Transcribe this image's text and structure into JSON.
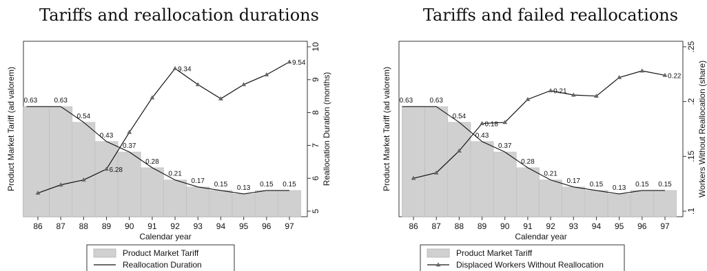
{
  "chart_data": [
    {
      "type": "bar",
      "title": "Tariffs and reallocation durations",
      "xlabel": "Calendar year",
      "ylabel_left": "Product Market Tariff (ad valorem)",
      "ylabel_right": "Reallocation Duration (months)",
      "categories": [
        "86",
        "87",
        "88",
        "89",
        "90",
        "91",
        "92",
        "93",
        "94",
        "95",
        "96",
        "97"
      ],
      "y2_ticks": [
        "5",
        "6",
        "7",
        "8",
        "9",
        "10"
      ],
      "y2lim": [
        5,
        10
      ],
      "series": [
        {
          "name": "Product Market Tariff",
          "kind": "bar",
          "axis": "left",
          "values": [
            0.63,
            0.63,
            0.54,
            0.43,
            0.37,
            0.28,
            0.21,
            0.17,
            0.15,
            0.13,
            0.15,
            0.15
          ],
          "labels": [
            "0.63",
            "0.63",
            "0.54",
            "0.43",
            "0.37",
            "0.28",
            "0.21",
            "0.17",
            "0.15",
            "0.13",
            "0.15",
            "0.15"
          ],
          "color": "#d0d0d0"
        },
        {
          "name": "Reallocation Duration",
          "kind": "line",
          "axis": "right",
          "values": [
            5.55,
            5.8,
            5.95,
            6.28,
            7.4,
            8.45,
            9.34,
            8.85,
            8.42,
            8.85,
            9.15,
            9.54
          ],
          "point_labels": {
            "3": "6.28",
            "6": "9.34",
            "11": "9.54"
          },
          "color": "#111111"
        }
      ],
      "legend": {
        "placement": "bottom",
        "items": [
          "Product Market Tariff",
          "Reallocation Duration"
        ]
      }
    },
    {
      "type": "bar",
      "title": "Tariffs and failed reallocations",
      "xlabel": "Calendar year",
      "ylabel_left": "Product Market Tariff (ad valorem)",
      "ylabel_right": "Workers Without Reallocation (share)",
      "categories": [
        "86",
        "87",
        "88",
        "89",
        "90",
        "91",
        "92",
        "93",
        "94",
        "95",
        "96",
        "97"
      ],
      "y2_ticks": [
        ".1",
        ".15",
        ".2",
        ".25"
      ],
      "y2lim": [
        0.1,
        0.25
      ],
      "series": [
        {
          "name": "Product Market Tariff",
          "kind": "bar",
          "axis": "left",
          "values": [
            0.63,
            0.63,
            0.54,
            0.43,
            0.37,
            0.28,
            0.21,
            0.17,
            0.15,
            0.13,
            0.15,
            0.15
          ],
          "labels": [
            "0.63",
            "0.63",
            "0.54",
            "0.43",
            "0.37",
            "0.28",
            "0.21",
            "0.17",
            "0.15",
            "0.13",
            "0.15",
            "0.15"
          ],
          "color": "#d0d0d0"
        },
        {
          "name": "Displaced Workers Without Reallocation",
          "kind": "line",
          "axis": "right",
          "values": [
            0.13,
            0.135,
            0.155,
            0.18,
            0.181,
            0.202,
            0.21,
            0.206,
            0.205,
            0.222,
            0.228,
            0.224
          ],
          "point_labels": {
            "3": "0.18",
            "6": "0.21",
            "11": "0.22"
          },
          "color": "#111111"
        }
      ],
      "legend": {
        "placement": "bottom",
        "items": [
          "Product Market Tariff",
          "Displaced Workers Without Reallocation"
        ]
      }
    }
  ]
}
